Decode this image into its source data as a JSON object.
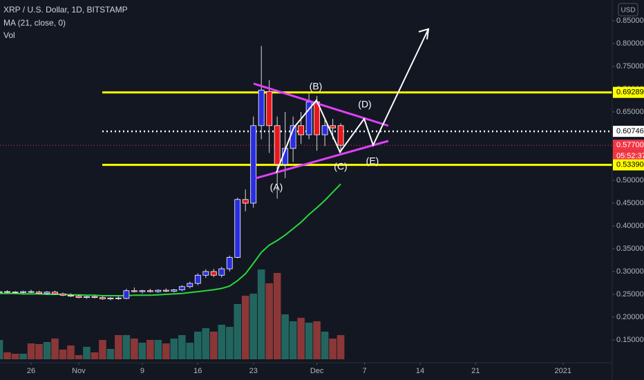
{
  "chart_data": {
    "type": "candlestick",
    "title": "XRP / U.S. Dollar, 1D, BITSTAMP",
    "indicators": [
      "MA (21, close, 0)",
      "Vol"
    ],
    "currency": "USD",
    "open": [
      0.254,
      0.256,
      0.255,
      0.254,
      0.256,
      0.255,
      0.252,
      0.255,
      0.251,
      0.248,
      0.246,
      0.243,
      0.245,
      0.243,
      0.24,
      0.242,
      0.241,
      0.258,
      0.256,
      0.258,
      0.256,
      0.259,
      0.257,
      0.26,
      0.267,
      0.274,
      0.292,
      0.3,
      0.292,
      0.306,
      0.331,
      0.458,
      0.45,
      0.62,
      0.695,
      0.62,
      0.535,
      0.57,
      0.62,
      0.6,
      0.672,
      0.6,
      0.62,
      0.62
    ],
    "high": [
      0.258,
      0.259,
      0.257,
      0.258,
      0.26,
      0.258,
      0.257,
      0.258,
      0.254,
      0.252,
      0.249,
      0.247,
      0.248,
      0.246,
      0.244,
      0.246,
      0.262,
      0.265,
      0.26,
      0.262,
      0.261,
      0.263,
      0.262,
      0.27,
      0.278,
      0.296,
      0.305,
      0.306,
      0.31,
      0.335,
      0.462,
      0.48,
      0.64,
      0.795,
      0.72,
      0.64,
      0.65,
      0.64,
      0.65,
      0.69,
      0.685,
      0.635,
      0.635,
      0.625
    ],
    "low": [
      0.251,
      0.253,
      0.252,
      0.252,
      0.253,
      0.25,
      0.249,
      0.25,
      0.246,
      0.244,
      0.241,
      0.24,
      0.241,
      0.238,
      0.237,
      0.238,
      0.239,
      0.254,
      0.252,
      0.254,
      0.253,
      0.255,
      0.254,
      0.257,
      0.263,
      0.27,
      0.286,
      0.288,
      0.287,
      0.3,
      0.329,
      0.432,
      0.44,
      0.59,
      0.56,
      0.46,
      0.505,
      0.54,
      0.58,
      0.59,
      0.565,
      0.575,
      0.59,
      0.56
    ],
    "close": [
      0.256,
      0.255,
      0.254,
      0.256,
      0.255,
      0.252,
      0.255,
      0.251,
      0.248,
      0.246,
      0.243,
      0.245,
      0.243,
      0.24,
      0.242,
      0.241,
      0.258,
      0.256,
      0.258,
      0.256,
      0.259,
      0.257,
      0.26,
      0.267,
      0.274,
      0.292,
      0.3,
      0.292,
      0.306,
      0.331,
      0.458,
      0.45,
      0.62,
      0.698,
      0.62,
      0.535,
      0.57,
      0.62,
      0.6,
      0.672,
      0.6,
      0.62,
      0.615,
      0.577
    ],
    "up_color": "#2a2ee0",
    "down_color": "#e8171d",
    "ma_values": [
      0.252,
      0.252,
      0.252,
      0.251,
      0.251,
      0.251,
      0.25,
      0.25,
      0.25,
      0.249,
      0.249,
      0.248,
      0.248,
      0.247,
      0.247,
      0.247,
      0.247,
      0.248,
      0.248,
      0.248,
      0.249,
      0.25,
      0.251,
      0.252,
      0.254,
      0.256,
      0.258,
      0.26,
      0.263,
      0.268,
      0.28,
      0.295,
      0.318,
      0.342,
      0.358,
      0.368,
      0.38,
      0.394,
      0.408,
      0.425,
      0.44,
      0.456,
      0.474,
      0.492
    ],
    "ma_color": "#28d93a",
    "volume": [
      28,
      10,
      8,
      8,
      23,
      22,
      25,
      30,
      14,
      20,
      6,
      18,
      10,
      28,
      15,
      35,
      35,
      30,
      24,
      28,
      28,
      23,
      30,
      35,
      24,
      40,
      45,
      40,
      50,
      47,
      80,
      92,
      95,
      130,
      110,
      125,
      65,
      55,
      60,
      53,
      55,
      40,
      30,
      35
    ],
    "vlim": [
      0,
      520
    ],
    "volume_up_color": "#22655f",
    "volume_down_color": "#8b3737",
    "ylim": [
      0.1076,
      0.8955
    ],
    "yticks": [
      {
        "value": 0.15,
        "label": "0.15000"
      },
      {
        "value": 0.2,
        "label": "0.20000"
      },
      {
        "value": 0.25,
        "label": "0.25000"
      },
      {
        "value": 0.3,
        "label": "0.30000"
      },
      {
        "value": 0.35,
        "label": "0.35000"
      },
      {
        "value": 0.4,
        "label": "0.40000"
      },
      {
        "value": 0.45,
        "label": "0.45000"
      },
      {
        "value": 0.5,
        "label": "0.50000"
      },
      {
        "value": 0.55,
        "label": "0.55000"
      },
      {
        "value": 0.6,
        "label": "0.60000"
      },
      {
        "value": 0.65,
        "label": "0.65000"
      },
      {
        "value": 0.7,
        "label": "0.70000"
      },
      {
        "value": 0.75,
        "label": "0.75000"
      },
      {
        "value": 0.8,
        "label": "0.80000"
      },
      {
        "value": 0.85,
        "label": "0.85000"
      }
    ],
    "xlim": [
      0.08,
      77.2
    ],
    "xticks": [
      {
        "value": 4,
        "label": "26"
      },
      {
        "value": 10,
        "label": "Nov"
      },
      {
        "value": 18,
        "label": "9"
      },
      {
        "value": 25,
        "label": "16"
      },
      {
        "value": 32,
        "label": "23"
      },
      {
        "value": 40,
        "label": "Dec"
      },
      {
        "value": 46,
        "label": "7"
      },
      {
        "value": 53,
        "label": "14"
      },
      {
        "value": 60,
        "label": "21"
      },
      {
        "value": 71,
        "label": "2021"
      }
    ],
    "levels": [
      {
        "value": 0.69289,
        "label": "0.69289",
        "color": "#ffff00"
      },
      {
        "value": 0.60746,
        "label": "0.60746",
        "color": "#ffffff"
      },
      {
        "value": 0.577,
        "label": "0.57700",
        "color": "#f23645"
      },
      {
        "value": 0.5339,
        "label": "0.53390",
        "color": "#ffff00"
      }
    ],
    "countdown": "05:52:37",
    "annotations": [
      "(A)",
      "(B)",
      "(C)",
      "(D)",
      "(E)"
    ]
  }
}
